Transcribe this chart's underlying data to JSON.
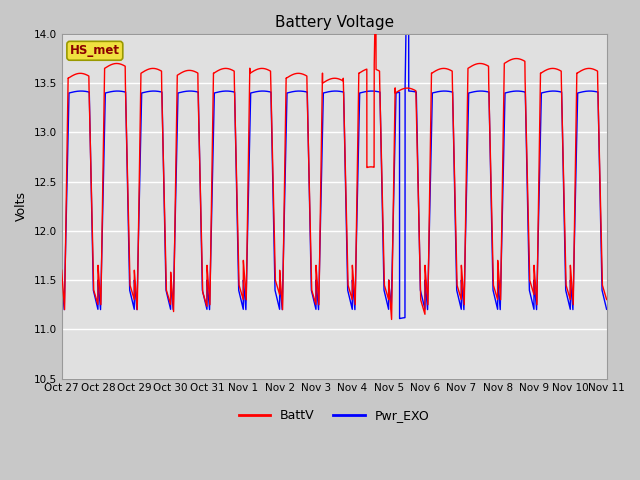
{
  "title": "Battery Voltage",
  "ylabel": "Volts",
  "ylim": [
    10.5,
    14.0
  ],
  "yticks": [
    10.5,
    11.0,
    11.5,
    12.0,
    12.5,
    13.0,
    13.5,
    14.0
  ],
  "x_labels": [
    "Oct 27",
    "Oct 28",
    "Oct 29",
    "Oct 30",
    "Oct 31",
    "Nov 1",
    "Nov 2",
    "Nov 3",
    "Nov 4",
    "Nov 5",
    "Nov 6",
    "Nov 7",
    "Nov 8",
    "Nov 9",
    "Nov 10",
    "Nov 11"
  ],
  "station_label": "HS_met",
  "fig_facecolor": "#c8c8c8",
  "ax_facecolor": "#e0e0e0",
  "grid_color": "#ffffff",
  "line1_color": "#ff0000",
  "line2_color": "#0000ff",
  "line1_label": "BattV",
  "line2_label": "Pwr_EXO",
  "title_fontsize": 11,
  "axis_fontsize": 9,
  "tick_fontsize": 7.5,
  "legend_fontsize": 9
}
